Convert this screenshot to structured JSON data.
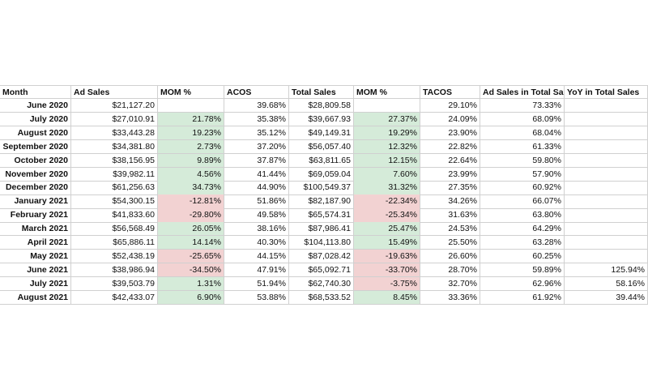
{
  "table": {
    "header": [
      "Month",
      "Ad Sales",
      "MOM %",
      "ACOS",
      "Total Sales",
      "MOM %",
      "TACOS",
      "Ad Sales in Total Sa",
      "YoY in Total Sales"
    ],
    "rows": [
      [
        "June 2020",
        "$21,127.20",
        null,
        "39.68%",
        "$28,809.58",
        null,
        "29.10%",
        "73.33%",
        null
      ],
      [
        "July 2020",
        "$27,010.91",
        "21.78%",
        "35.38%",
        "$39,667.93",
        "27.37%",
        "24.09%",
        "68.09%",
        null
      ],
      [
        "August 2020",
        "$33,443.28",
        "19.23%",
        "35.12%",
        "$49,149.31",
        "19.29%",
        "23.90%",
        "68.04%",
        null
      ],
      [
        "September 2020",
        "$34,381.80",
        "2.73%",
        "37.20%",
        "$56,057.40",
        "12.32%",
        "22.82%",
        "61.33%",
        null
      ],
      [
        "October 2020",
        "$38,156.95",
        "9.89%",
        "37.87%",
        "$63,811.65",
        "12.15%",
        "22.64%",
        "59.80%",
        null
      ],
      [
        "November 2020",
        "$39,982.11",
        "4.56%",
        "41.44%",
        "$69,059.04",
        "7.60%",
        "23.99%",
        "57.90%",
        null
      ],
      [
        "December 2020",
        "$61,256.63",
        "34.73%",
        "44.90%",
        "$100,549.37",
        "31.32%",
        "27.35%",
        "60.92%",
        null
      ],
      [
        "January 2021",
        "$54,300.15",
        "-12.81%",
        "51.86%",
        "$82,187.90",
        "-22.34%",
        "34.26%",
        "66.07%",
        null
      ],
      [
        "February 2021",
        "$41,833.60",
        "-29.80%",
        "49.58%",
        "$65,574.31",
        "-25.34%",
        "31.63%",
        "63.80%",
        null
      ],
      [
        "March 2021",
        "$56,568.49",
        "26.05%",
        "38.16%",
        "$87,986.41",
        "25.47%",
        "24.53%",
        "64.29%",
        null
      ],
      [
        "April 2021",
        "$65,886.11",
        "14.14%",
        "40.30%",
        "$104,113.80",
        "15.49%",
        "25.50%",
        "63.28%",
        null
      ],
      [
        "May 2021",
        "$52,438.19",
        "-25.65%",
        "44.15%",
        "$87,028.42",
        "-19.63%",
        "26.60%",
        "60.25%",
        null
      ],
      [
        "June 2021",
        "$38,986.94",
        "-34.50%",
        "47.91%",
        "$65,092.71",
        "-33.70%",
        "28.70%",
        "59.89%",
        "125.94%"
      ],
      [
        "July 2021",
        "$39,503.79",
        "1.31%",
        "51.94%",
        "$62,740.30",
        "-3.75%",
        "32.70%",
        "62.96%",
        "58.16%"
      ],
      [
        "August 2021",
        "$42,433.07",
        "6.90%",
        "53.88%",
        "$68,533.52",
        "8.45%",
        "33.36%",
        "61.92%",
        "39.44%"
      ]
    ],
    "highlight": {
      "positive": "#d5ebd9",
      "negative": "#f2d2d2"
    }
  }
}
